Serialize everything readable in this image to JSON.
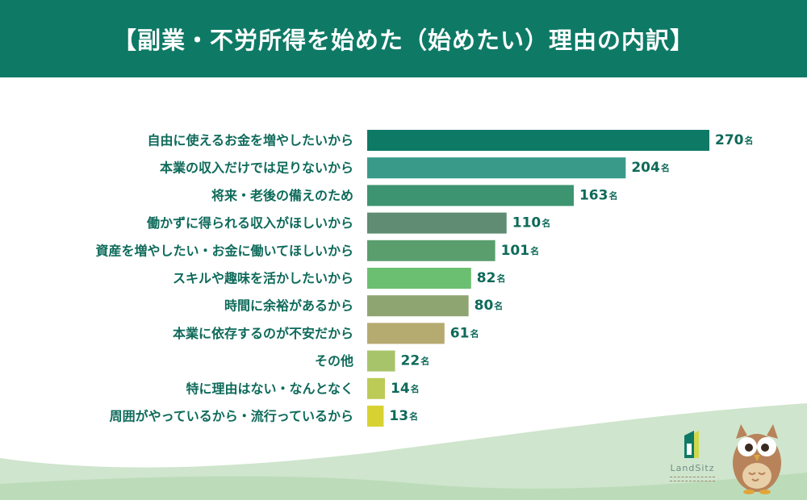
{
  "header": {
    "title": "【副業・不労所得を始めた（始めたい）理由の内訳】"
  },
  "brand": {
    "name": "LandSitz",
    "accent": "#0e7a66",
    "mascot": "owl-icon"
  },
  "chart_data": {
    "type": "bar",
    "orientation": "horizontal",
    "unit": "名",
    "categories": [
      "自由に使えるお金を増やしたいから",
      "本業の収入だけでは足りないから",
      "将来・老後の備えのため",
      "働かずに得られる収入がほしいから",
      "資産を増やしたい・お金に働いてほしいから",
      "スキルや趣味を活かしたいから",
      "時間に余裕があるから",
      "本業に依存するのが不安だから",
      "その他",
      "特に理由はない・なんとなく",
      "周囲がやっているから・流行っているから"
    ],
    "values": [
      270,
      204,
      163,
      110,
      101,
      82,
      80,
      61,
      22,
      14,
      13
    ],
    "colors": [
      "#0e7a66",
      "#3a9a8a",
      "#3d9470",
      "#5f8c72",
      "#5a9e6e",
      "#6bbf70",
      "#8ea572",
      "#b5ab70",
      "#a8c46a",
      "#bccb55",
      "#d7d232"
    ],
    "xlim": [
      0,
      270
    ],
    "grid": false,
    "legend": "none"
  }
}
